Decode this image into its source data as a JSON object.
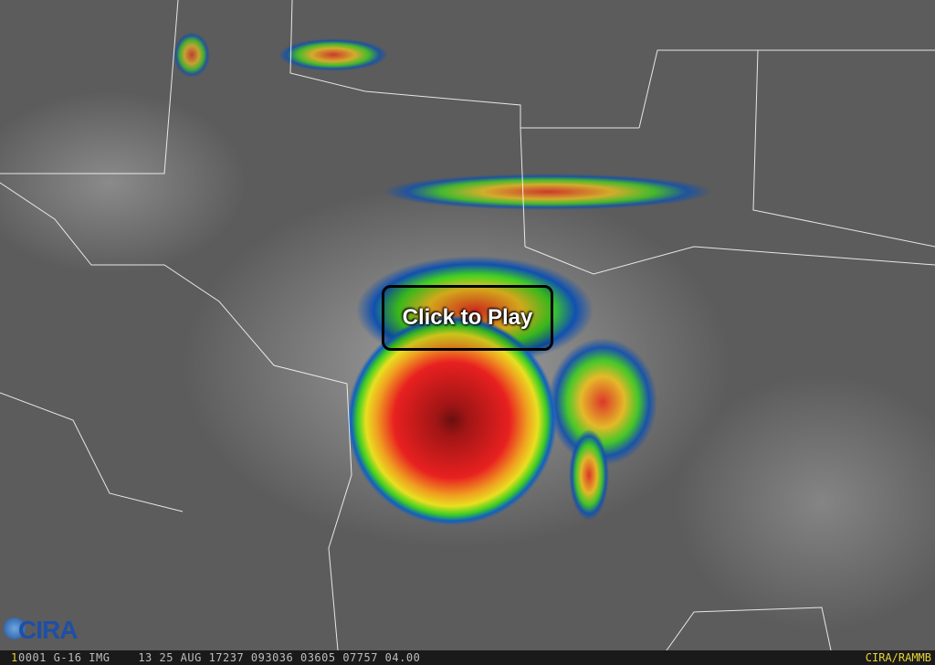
{
  "player": {
    "play_label": "Click to Play"
  },
  "logo": {
    "text": "CIRA"
  },
  "status_bar": {
    "frame_number": "1",
    "info": "0001 G-16 IMG    13 25 AUG 17237 093036 03605 07757 04.00",
    "credit": "CIRA/RAMMB"
  },
  "colors": {
    "bar_text": "#e8d23a",
    "info_text": "#bdbdbd",
    "storm_core": "#e02020"
  }
}
